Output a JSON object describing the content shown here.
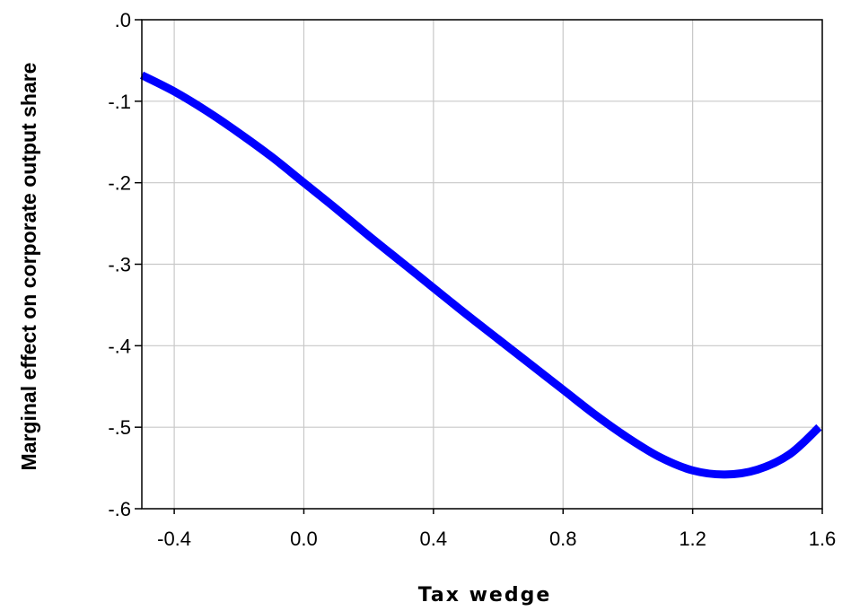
{
  "chart_data": {
    "type": "line",
    "title": "",
    "xlabel": "Tax wedge",
    "ylabel": "Marginal effect on corporate output share",
    "xlim": [
      -0.5,
      1.6
    ],
    "ylim": [
      -0.6,
      0.0
    ],
    "x_ticks": [
      {
        "value": -0.4,
        "label": "-0.4"
      },
      {
        "value": 0.0,
        "label": "0.0"
      },
      {
        "value": 0.4,
        "label": "0.4"
      },
      {
        "value": 0.8,
        "label": "0.8"
      },
      {
        "value": 1.2,
        "label": "1.2"
      },
      {
        "value": 1.6,
        "label": "1.6"
      }
    ],
    "y_ticks": [
      {
        "value": 0.0,
        "label": ".0"
      },
      {
        "value": -0.1,
        "label": "-.1"
      },
      {
        "value": -0.2,
        "label": "-.2"
      },
      {
        "value": -0.3,
        "label": "-.3"
      },
      {
        "value": -0.4,
        "label": "-.4"
      },
      {
        "value": -0.5,
        "label": "-.5"
      },
      {
        "value": -0.6,
        "label": "-.6"
      }
    ],
    "grid": true,
    "legend": "none",
    "series": [
      {
        "color": "#0000ff",
        "x": [
          -0.5,
          -0.4,
          -0.3,
          -0.2,
          -0.1,
          0.0,
          0.1,
          0.2,
          0.3,
          0.4,
          0.5,
          0.6,
          0.7,
          0.8,
          0.9,
          1.0,
          1.1,
          1.2,
          1.3,
          1.4,
          1.5,
          1.59
        ],
        "y": [
          -0.068,
          -0.088,
          -0.112,
          -0.139,
          -0.168,
          -0.2,
          -0.232,
          -0.265,
          -0.297,
          -0.329,
          -0.361,
          -0.392,
          -0.423,
          -0.454,
          -0.485,
          -0.513,
          -0.537,
          -0.553,
          -0.558,
          -0.552,
          -0.533,
          -0.5
        ]
      }
    ]
  }
}
